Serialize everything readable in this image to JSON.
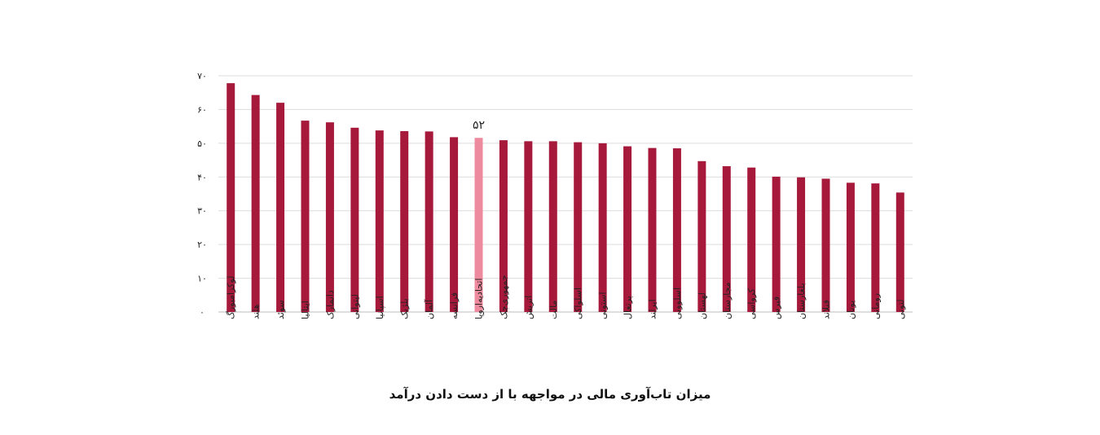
{
  "chart_data": {
    "type": "bar",
    "title": "میزان تاب‌آوری مالی در مواجهه با از دست دادن درآمد",
    "xlabel": "",
    "ylabel": "",
    "ylim": [
      0,
      70
    ],
    "yticks": [
      0,
      10,
      20,
      30,
      40,
      50,
      60,
      70
    ],
    "ytick_labels": [
      "۰",
      "۱۰",
      "۲۰",
      "۳۰",
      "۴۰",
      "۵۰",
      "۶۰",
      "۷۰"
    ],
    "grid": true,
    "categories": [
      "لوکزامبورگ",
      "هلند",
      "سوئد",
      "ایتالیا",
      "دانمارک",
      "لیتوانی",
      "اسپانیا",
      "بلژیک",
      "آلمان",
      "فرانسه",
      "اتحادیه‌اروپا",
      "جمهوری‌چک",
      "اتریش",
      "مالت",
      "اسلواکی",
      "استونی",
      "پرتغال",
      "ایرلند",
      "اسلوونی",
      "لهستان",
      "مجارستان",
      "کرواسی",
      "قبرس",
      "بلغارستان",
      "فنلاند",
      "یونان",
      "رومانی",
      "لتونی"
    ],
    "values": [
      67.8,
      64.3,
      62.0,
      56.7,
      56.2,
      54.6,
      53.8,
      53.6,
      53.5,
      51.8,
      51.6,
      50.9,
      50.6,
      50.6,
      50.3,
      50.0,
      49.1,
      48.6,
      48.5,
      44.7,
      43.2,
      42.8,
      40.1,
      39.9,
      39.5,
      38.3,
      38.1,
      35.4
    ],
    "highlight_category": "اتحادیه‌اروپا",
    "highlight_label": "۵۲",
    "colors": {
      "bar": "#a6193b",
      "highlight": "#ee8a9e",
      "grid": "#dcdcdc",
      "axis": "#bdbdbd"
    }
  }
}
